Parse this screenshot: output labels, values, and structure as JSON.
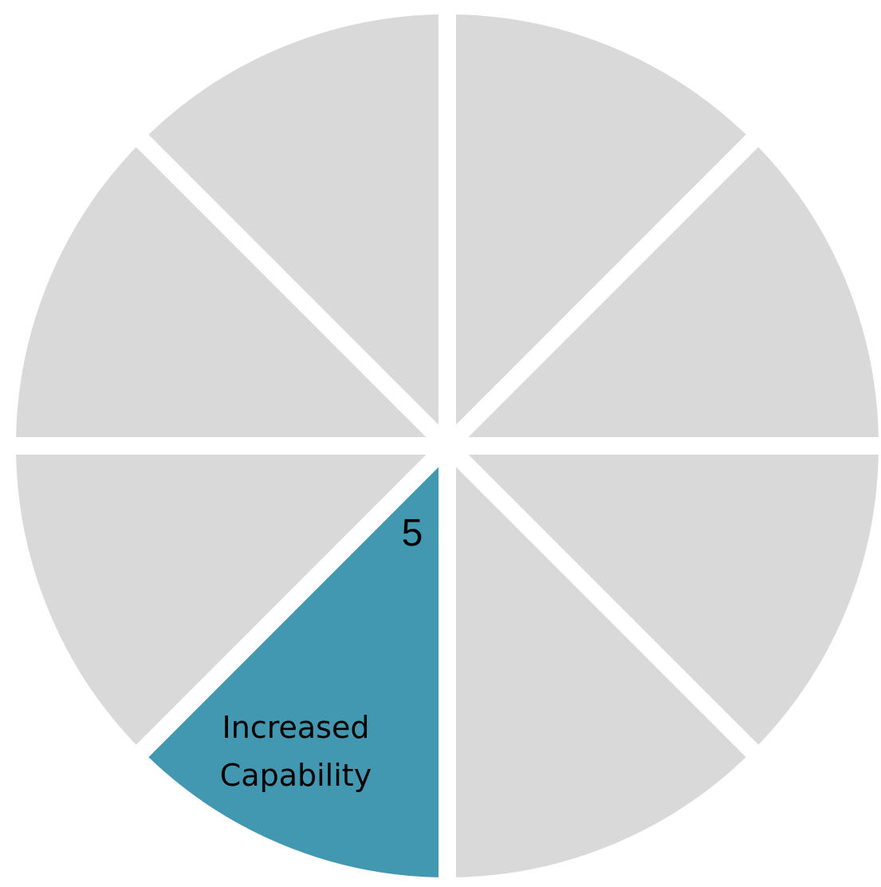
{
  "diagram": {
    "colors": {
      "inactive": "#d9d9d9",
      "active": "#4398b1",
      "separator": "#ffffff"
    },
    "segments": [
      {
        "id": "top-right"
      },
      {
        "id": "right-upper"
      },
      {
        "id": "right-lower"
      },
      {
        "id": "bottom-right"
      },
      {
        "id": "bottom-left",
        "active": true,
        "number": "5",
        "label_lines": [
          "Increased",
          "Capability"
        ]
      },
      {
        "id": "left-lower"
      },
      {
        "id": "left-upper"
      },
      {
        "id": "top-left"
      }
    ]
  }
}
